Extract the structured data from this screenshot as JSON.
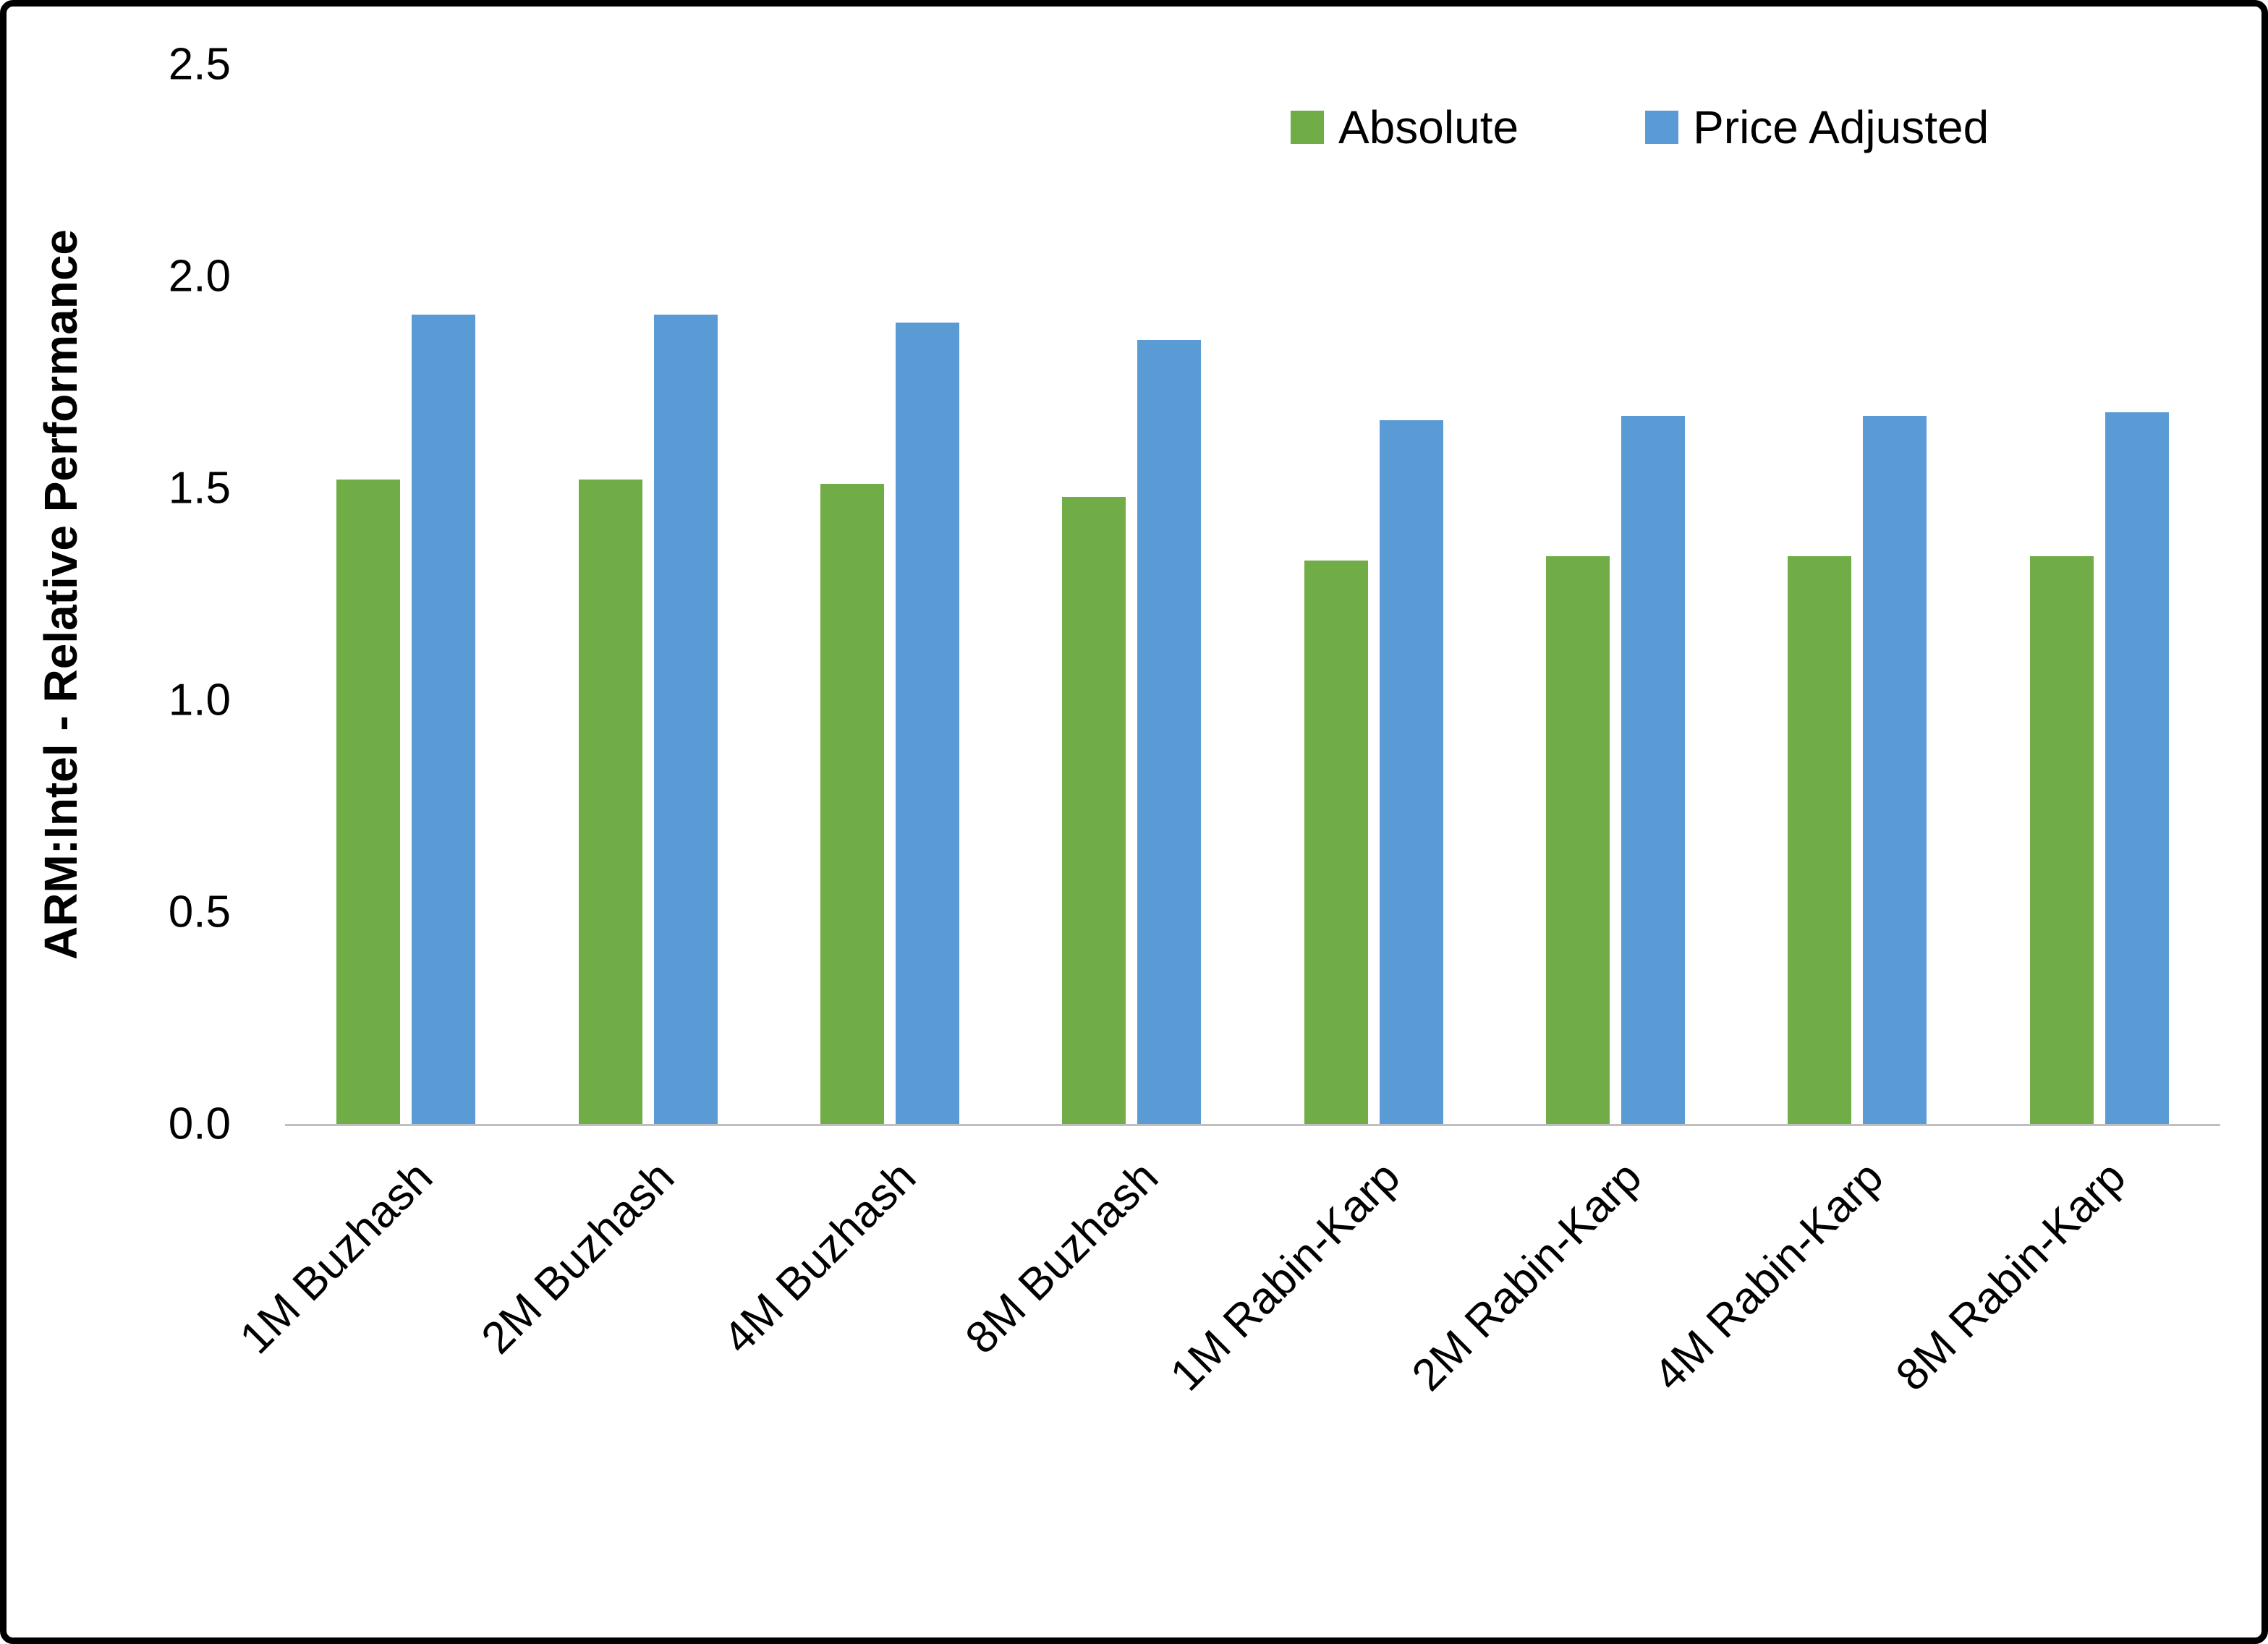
{
  "chart_data": {
    "type": "bar",
    "title": "",
    "xlabel": "",
    "ylabel": "ARM:Intel - Relative Performance",
    "ylim": [
      0,
      2.5
    ],
    "yticks": [
      "0.0",
      "0.5",
      "1.0",
      "1.5",
      "2.0",
      "2.5"
    ],
    "grid": false,
    "legend_position": "top-right",
    "categories": [
      "1M Buzhash",
      "2M Buzhash",
      "4M Buzhash",
      "8M Buzhash",
      "1M Rabin-Karp",
      "2M Rabin-Karp",
      "4M Rabin-Karp",
      "8M Rabin-Karp"
    ],
    "series": [
      {
        "name": "Absolute",
        "color": "#70AD47",
        "values": [
          1.52,
          1.52,
          1.51,
          1.48,
          1.33,
          1.34,
          1.34,
          1.34
        ]
      },
      {
        "name": "Price Adjusted",
        "color": "#5B9BD5",
        "values": [
          1.91,
          1.91,
          1.89,
          1.85,
          1.66,
          1.67,
          1.67,
          1.68
        ]
      }
    ]
  }
}
